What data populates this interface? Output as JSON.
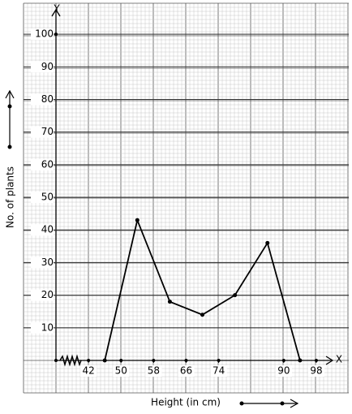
{
  "chart_data": {
    "type": "line",
    "x_label": "Height (in cm)",
    "y_label": "No. of plants",
    "x_axis_name": "X",
    "y_axis_name": "Y",
    "x": [
      46,
      54,
      62,
      70,
      78,
      86,
      94
    ],
    "values": [
      0,
      43,
      18,
      14,
      20,
      36,
      0
    ],
    "color": "#000000",
    "xlim": [
      34,
      101
    ],
    "ylim": [
      0,
      106
    ],
    "xticks": [
      42,
      50,
      58,
      66,
      74,
      90,
      98
    ],
    "yticks": [
      10,
      20,
      30,
      40,
      50,
      60,
      70,
      80,
      90,
      100
    ],
    "grid": true
  }
}
